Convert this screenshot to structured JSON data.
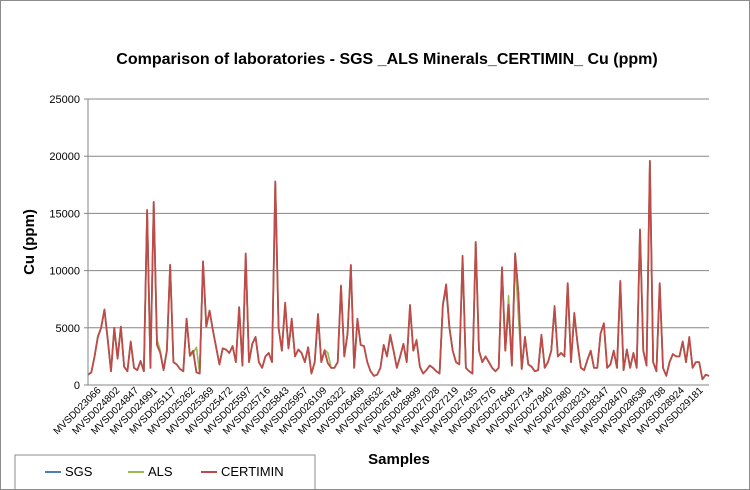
{
  "chart_data": {
    "type": "line",
    "title": "Comparison of laboratories - SGS _ALS Minerals_CERTIMIN_ Cu (ppm)",
    "xlabel": "Samples",
    "ylabel": "Cu (ppm)",
    "ylim": [
      0,
      25000
    ],
    "yticks": [
      "0",
      "5000",
      "10000",
      "15000",
      "20000",
      "25000"
    ],
    "grid": true,
    "legend_position": "bottom-left",
    "tick_labels": [
      "MVSD023066",
      "MVSD024802",
      "MVSD024847",
      "MVSD024991",
      "MVSD025117",
      "MVSD025262",
      "MVSD025369",
      "MVSD025472",
      "MVSD025597",
      "MVSD025716",
      "MVSD025843",
      "MVSD025957",
      "MVSD026109",
      "MVSD026322",
      "MVSD026469",
      "MVSD026632",
      "MVSD026784",
      "MVSD026899",
      "MVSD027028",
      "MVSD027219",
      "MVSD027435",
      "MVSD027576",
      "MVSD027648",
      "MVSD027734",
      "MVSD027840",
      "MVSD027980",
      "MVSD028231",
      "MVSD028347",
      "MVSD028470",
      "MVSD028638",
      "MVSD028798",
      "MVSD028924",
      "MVSD029181"
    ],
    "series": [
      {
        "name": "SGS",
        "color": "#4a7ebb",
        "values": [
          900,
          1100,
          2500,
          4200,
          5000,
          6600,
          4000,
          1200,
          5000,
          2300,
          5100,
          1600,
          1200,
          3800,
          1500,
          1300,
          2100,
          1200,
          15300,
          1500,
          16000,
          3500,
          2800,
          1300,
          3000,
          10500,
          2000,
          1800,
          1400,
          1200,
          5800,
          2600,
          3000,
          1100,
          1000,
          10800,
          5100,
          6500,
          4800,
          3300,
          1800,
          3200,
          3100,
          2800,
          3400,
          2000,
          6800,
          1700,
          11200,
          2000,
          3600,
          4200,
          2000,
          1500,
          2500,
          2800,
          2000,
          17700,
          5000,
          3000,
          7000,
          3200,
          5500,
          2500,
          3100,
          2800,
          2000,
          3300,
          1000,
          2000,
          5900,
          2000,
          3000,
          1900,
          1500,
          1500,
          2000,
          8600,
          2500,
          4500,
          10400,
          1500,
          5600,
          3500,
          3400,
          2000,
          1200,
          800,
          900,
          1500,
          3500,
          2500,
          4200,
          3000,
          1500,
          2500,
          3600,
          2000,
          6700,
          3000,
          3900,
          1600,
          1000,
          1300,
          1700,
          1500,
          1200,
          1000,
          7000,
          8300,
          5000,
          3000,
          2000,
          1800,
          11100,
          1500,
          1200,
          1000,
          12500,
          3000,
          2000,
          2500,
          2000,
          1500,
          1200,
          1500,
          10200,
          3000,
          7000,
          1700,
          11500,
          8000,
          1400,
          4200,
          1800,
          1600,
          1200,
          1300,
          4300,
          1500,
          2000,
          3000,
          6700,
          2500,
          2800,
          2500,
          8800,
          2000,
          6100,
          3600,
          1500,
          1300,
          2200,
          3000,
          1500,
          1500,
          4500,
          5300,
          1500,
          1800,
          3000,
          1500,
          9000,
          1300,
          3100,
          1500,
          2800,
          1500,
          13500,
          3000,
          1700,
          19500,
          2000,
          1200,
          8800,
          1500,
          800,
          2000,
          2700,
          2500,
          2500,
          3800,
          2000,
          4000,
          1500,
          2000,
          2000,
          500,
          900,
          800
        ],
        "values_note": "SGS overlaps CERTIMIN closely"
      },
      {
        "name": "ALS",
        "color": "#98b954",
        "values": [
          900,
          1100,
          2500,
          4300,
          5000,
          6600,
          4000,
          1200,
          5000,
          2400,
          5100,
          1600,
          1200,
          3800,
          1500,
          1300,
          2100,
          1200,
          15200,
          1500,
          15900,
          4000,
          3000,
          1300,
          3000,
          10500,
          2000,
          1800,
          1400,
          1200,
          5800,
          2500,
          2800,
          3300,
          1000,
          10800,
          5200,
          6500,
          4800,
          3300,
          1800,
          3200,
          3100,
          2800,
          3400,
          2000,
          6800,
          1700,
          11200,
          2000,
          3600,
          4200,
          2000,
          1500,
          2500,
          2800,
          2000,
          17700,
          5000,
          3000,
          7000,
          3200,
          5500,
          2500,
          3100,
          2800,
          2000,
          3300,
          1000,
          2000,
          6200,
          2000,
          3100,
          2800,
          1500,
          1500,
          2000,
          8600,
          2500,
          4500,
          10400,
          1500,
          5600,
          3500,
          3400,
          2000,
          1200,
          800,
          900,
          1500,
          3500,
          2500,
          4200,
          3000,
          1500,
          2500,
          3600,
          2000,
          6800,
          3000,
          4000,
          1600,
          1000,
          1300,
          1700,
          1500,
          1200,
          1000,
          7000,
          8800,
          5000,
          3000,
          2000,
          1800,
          11100,
          1500,
          1200,
          1000,
          12500,
          3000,
          2000,
          2500,
          2000,
          1500,
          1200,
          1500,
          10200,
          3000,
          7800,
          1700,
          11000,
          6000,
          1400,
          4200,
          1800,
          1600,
          1200,
          1300,
          4300,
          1500,
          2000,
          3000,
          6700,
          2500,
          2800,
          2500,
          8800,
          2000,
          6100,
          3600,
          1500,
          1300,
          2200,
          3000,
          1500,
          1500,
          4500,
          5300,
          1500,
          1800,
          3000,
          1500,
          9000,
          1300,
          3100,
          1500,
          2800,
          1500,
          13500,
          3000,
          1700,
          19500,
          2000,
          1200,
          8800,
          1500,
          800,
          2000,
          2700,
          2500,
          2500,
          3800,
          2000,
          4000,
          1500,
          2000,
          2000,
          500,
          900,
          800
        ]
      },
      {
        "name": "CERTIMIN",
        "color": "#be4b48",
        "values": [
          900,
          1100,
          2500,
          4200,
          5000,
          6600,
          4000,
          1200,
          5000,
          2300,
          5100,
          1600,
          1200,
          3800,
          1500,
          1300,
          2100,
          1200,
          15300,
          1500,
          16000,
          3500,
          2800,
          1300,
          3000,
          10500,
          2000,
          1800,
          1400,
          1200,
          5800,
          2600,
          3000,
          1100,
          1000,
          10800,
          5100,
          6500,
          4800,
          3300,
          1800,
          3200,
          3100,
          2800,
          3400,
          2000,
          6800,
          1700,
          11500,
          2000,
          3600,
          4200,
          2000,
          1500,
          2500,
          2800,
          2000,
          17800,
          5000,
          3000,
          7200,
          3200,
          5800,
          2500,
          3100,
          2800,
          2000,
          3300,
          1000,
          2000,
          6200,
          2000,
          3000,
          1900,
          1500,
          1500,
          2000,
          8700,
          2500,
          4500,
          10500,
          1500,
          5800,
          3500,
          3400,
          2000,
          1200,
          800,
          900,
          1500,
          3500,
          2500,
          4400,
          3000,
          1500,
          2500,
          3600,
          2000,
          7000,
          3000,
          3900,
          1600,
          1000,
          1300,
          1700,
          1500,
          1200,
          1000,
          7000,
          8800,
          5000,
          3000,
          2000,
          1800,
          11300,
          1500,
          1200,
          1000,
          12500,
          3000,
          2000,
          2500,
          2000,
          1500,
          1200,
          1500,
          10300,
          3000,
          7000,
          1700,
          11500,
          8000,
          1400,
          4200,
          1800,
          1600,
          1200,
          1300,
          4400,
          1500,
          2000,
          3000,
          6900,
          2500,
          2800,
          2500,
          8900,
          2000,
          6300,
          3600,
          1500,
          1300,
          2200,
          3000,
          1500,
          1500,
          4500,
          5400,
          1500,
          1800,
          3000,
          1500,
          9100,
          1300,
          3100,
          1500,
          2800,
          1500,
          13600,
          3000,
          1700,
          19600,
          2000,
          1200,
          8900,
          1500,
          800,
          2000,
          2700,
          2500,
          2500,
          3800,
          2000,
          4200,
          1500,
          2000,
          2000,
          500,
          900,
          800
        ]
      }
    ]
  }
}
